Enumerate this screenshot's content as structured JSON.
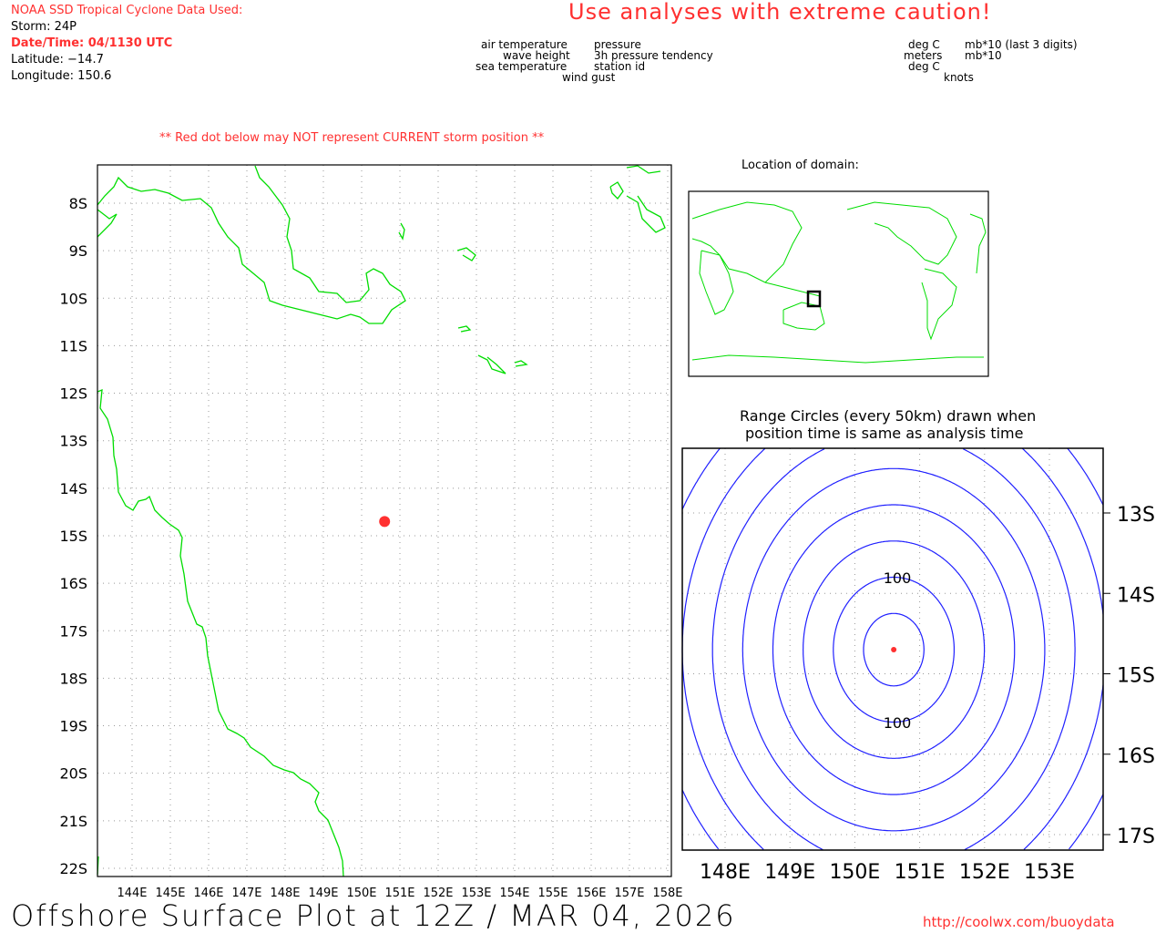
{
  "header": {
    "source": "NOAA SSD Tropical Cyclone Data Used:",
    "storm": "Storm: 24P",
    "datetime": "Date/Time: 04/1130 UTC",
    "latitude": "Latitude: −14.7",
    "longitude": "Longitude: 150.6",
    "caution": "Use analyses with extreme caution!"
  },
  "legend": {
    "left": [
      "air temperature",
      "wave height",
      "sea temperature"
    ],
    "right": [
      "pressure",
      "3h pressure tendency",
      "station id"
    ],
    "bottom": "wind gust",
    "units_left": [
      "deg C",
      "meters",
      "deg C"
    ],
    "units_right": [
      "mb*10 (last 3 digits)",
      "mb*10"
    ],
    "units_bottom": "knots"
  },
  "warning": "** Red dot below may NOT represent CURRENT storm position **",
  "storm": {
    "lat": -14.7,
    "lon": 150.6,
    "color": "#ff3030"
  },
  "main_map": {
    "lat_labels": [
      "8S",
      "9S",
      "10S",
      "11S",
      "12S",
      "13S",
      "14S",
      "15S",
      "16S",
      "17S",
      "18S",
      "19S",
      "20S",
      "21S",
      "22S"
    ],
    "lon_labels": [
      "144E",
      "145E",
      "146E",
      "147E",
      "148E",
      "149E",
      "150E",
      "151E",
      "152E",
      "153E",
      "154E",
      "155E",
      "156E",
      "157E",
      "158E"
    ]
  },
  "inset": {
    "title": "Location of domain:"
  },
  "range": {
    "title1": "Range Circles (every 50km) drawn when",
    "title2": "position time is same as analysis time",
    "interval_km": 50,
    "label": "100",
    "lat_labels": [
      "13S",
      "14S",
      "15S",
      "16S",
      "17S"
    ],
    "lon_labels": [
      "148E",
      "149E",
      "150E",
      "151E",
      "152E",
      "153E"
    ]
  },
  "footer": {
    "title": "Offshore Surface Plot at 12Z / MAR 04, 2026",
    "url": "http://coolwx.com/buoydata"
  },
  "colors": {
    "coast": "#00dd00",
    "circles": "#2020ff",
    "red": "#ff3030"
  }
}
